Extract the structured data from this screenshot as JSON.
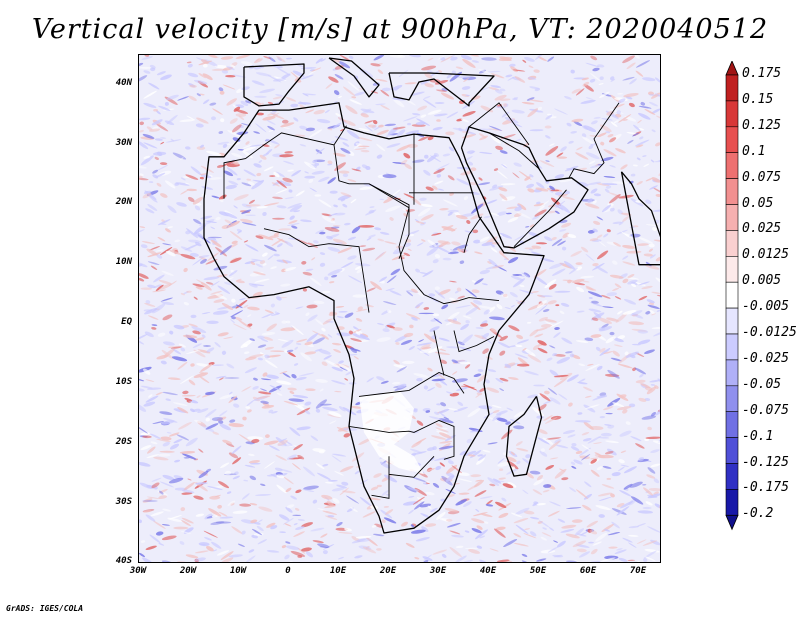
{
  "title": "Vertical velocity [m/s] at 900hPa, VT: 2020040512",
  "map": {
    "lat_labels": [
      "40N",
      "30N",
      "20N",
      "10N",
      "EQ",
      "10S",
      "20S",
      "30S",
      "40S"
    ],
    "lon_labels": [
      "30W",
      "20W",
      "10W",
      "0",
      "10E",
      "20E",
      "30E",
      "40E",
      "50E",
      "60E",
      "70E"
    ],
    "extent": {
      "lon_min": -30,
      "lon_max": 75,
      "lat_min": -40,
      "lat_max": 45
    },
    "colors": {
      "neg_light": "#c9c9ff",
      "pos_light": "#f2c2c2",
      "pos_strong": "#e06060",
      "neg_strong": "#7878e8",
      "coast": "#000000"
    }
  },
  "colorbar": {
    "labels": [
      "0.175",
      "0.15",
      "0.125",
      "0.1",
      "0.075",
      "0.05",
      "0.025",
      "0.0125",
      "0.005",
      "-0.005",
      "-0.0125",
      "-0.025",
      "-0.05",
      "-0.075",
      "-0.1",
      "-0.125",
      "-0.175",
      "-0.2"
    ],
    "colors": [
      "#a01414",
      "#c02020",
      "#d83838",
      "#e85050",
      "#ee7070",
      "#f29090",
      "#f6b0b0",
      "#fad0d0",
      "#fdeaea",
      "#ffffff",
      "#e6e6ff",
      "#ccccff",
      "#b0b0f8",
      "#9090ee",
      "#7070e4",
      "#5050d8",
      "#3030c4",
      "#1818a8",
      "#10108c"
    ]
  },
  "credit": "GrADS: IGES/COLA"
}
